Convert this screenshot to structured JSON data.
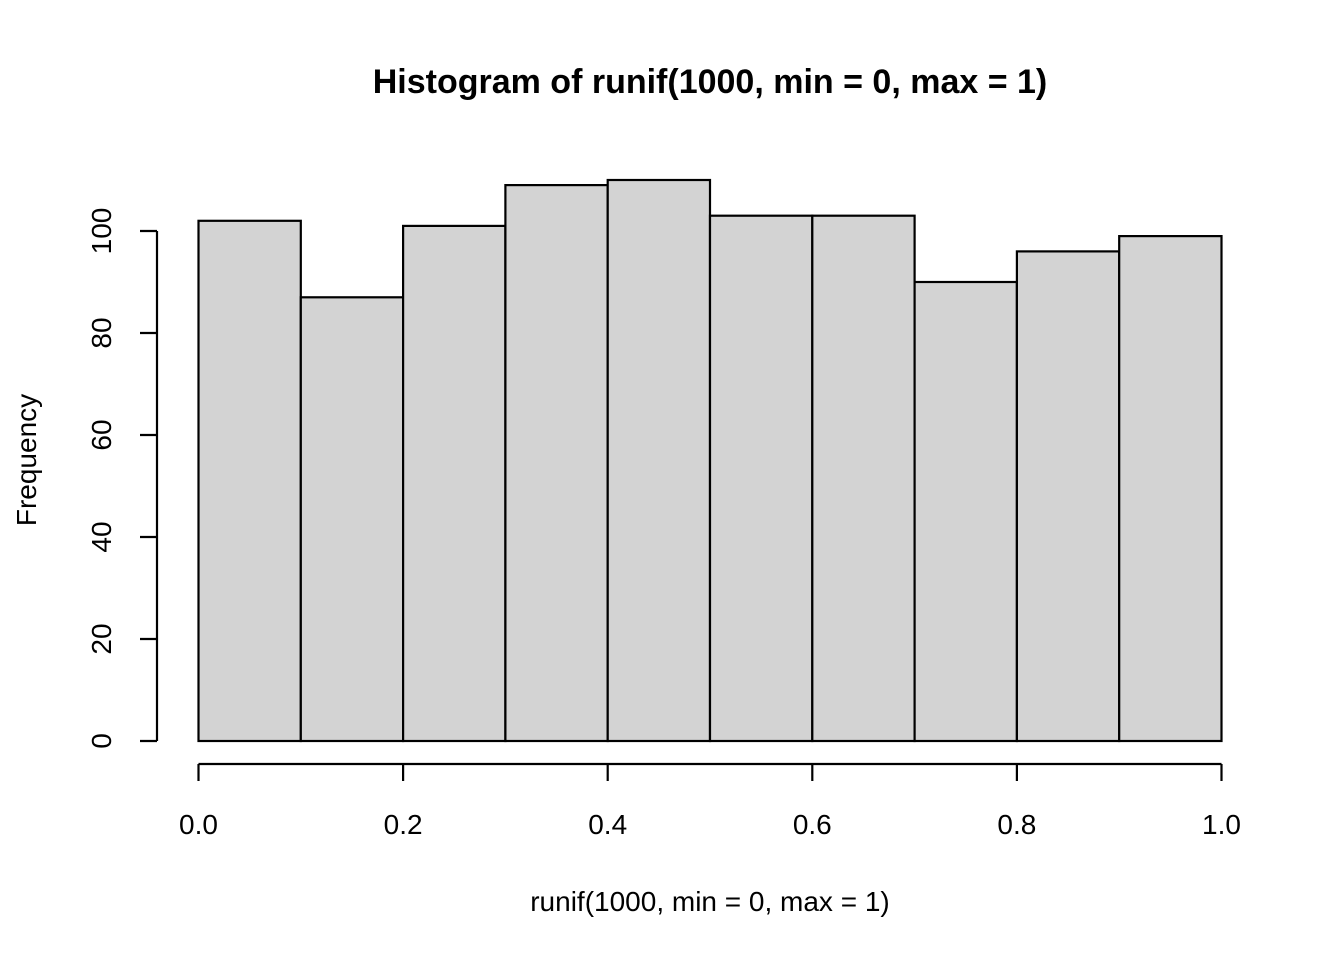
{
  "chart_data": {
    "type": "bar",
    "title": "Histogram of runif(1000, min = 0, max = 1)",
    "xlabel": "runif(1000, min = 0, max = 1)",
    "ylabel": "Frequency",
    "bin_edges": [
      0.0,
      0.1,
      0.2,
      0.3,
      0.4,
      0.5,
      0.6,
      0.7,
      0.8,
      0.9,
      1.0
    ],
    "values": [
      102,
      87,
      101,
      109,
      110,
      103,
      103,
      90,
      96,
      99
    ],
    "xlim": [
      0.0,
      1.0
    ],
    "ylim": [
      0,
      110
    ],
    "x_ticks": [
      0.0,
      0.2,
      0.4,
      0.6,
      0.8,
      1.0
    ],
    "x_tick_labels": [
      "0.0",
      "0.2",
      "0.4",
      "0.6",
      "0.8",
      "1.0"
    ],
    "y_ticks": [
      0,
      20,
      40,
      60,
      80,
      100
    ],
    "y_tick_labels": [
      "0",
      "20",
      "40",
      "60",
      "80",
      "100"
    ],
    "bar_color": "#d3d3d3",
    "edge_color": "#000000",
    "grid": false,
    "legend": "none"
  }
}
